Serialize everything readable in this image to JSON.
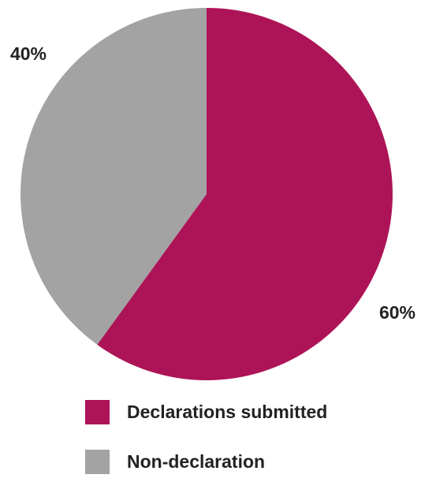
{
  "chart_data": {
    "type": "pie",
    "slices": [
      {
        "label": "Declarations submitted",
        "value": 60,
        "value_label": "60%",
        "color": "#ad1457"
      },
      {
        "label": "Non-declaration",
        "value": 40,
        "value_label": "40%",
        "color": "#a3a3a3"
      }
    ],
    "start_angle": "12 o'clock",
    "direction": "clockwise",
    "legend_position": "bottom"
  }
}
